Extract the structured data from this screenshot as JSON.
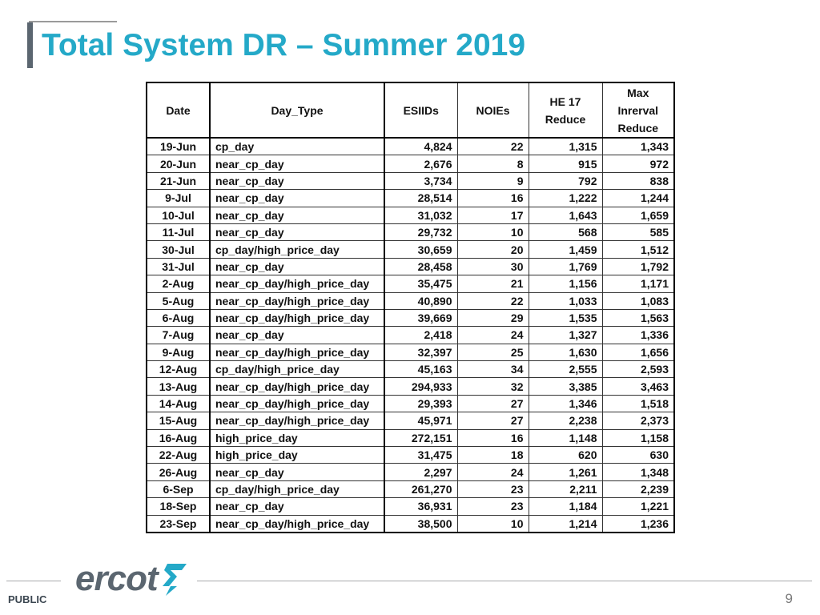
{
  "slide": {
    "title": "Total System DR – Summer 2019",
    "footer_label": "PUBLIC",
    "page_number": "9",
    "logo_text": "ercot",
    "accent_color": "#24a9c8",
    "logo_color": "#5b6670",
    "logo_mark_color": "#24a9c8"
  },
  "table": {
    "headers": {
      "date": "Date",
      "day_type": "Day_Type",
      "esiids": "ESIIDs",
      "noies": "NOIEs",
      "he17": [
        "HE 17",
        "Reduce"
      ],
      "max": [
        "Max",
        "Inrerval",
        "Reduce"
      ]
    },
    "rows": [
      [
        "19-Jun",
        "cp_day",
        "4,824",
        "22",
        "1,315",
        "1,343"
      ],
      [
        "20-Jun",
        "near_cp_day",
        "2,676",
        "8",
        "915",
        "972"
      ],
      [
        "21-Jun",
        "near_cp_day",
        "3,734",
        "9",
        "792",
        "838"
      ],
      [
        "9-Jul",
        "near_cp_day",
        "28,514",
        "16",
        "1,222",
        "1,244"
      ],
      [
        "10-Jul",
        "near_cp_day",
        "31,032",
        "17",
        "1,643",
        "1,659"
      ],
      [
        "11-Jul",
        "near_cp_day",
        "29,732",
        "10",
        "568",
        "585"
      ],
      [
        "30-Jul",
        "cp_day/high_price_day",
        "30,659",
        "20",
        "1,459",
        "1,512"
      ],
      [
        "31-Jul",
        "near_cp_day",
        "28,458",
        "30",
        "1,769",
        "1,792"
      ],
      [
        "2-Aug",
        "near_cp_day/high_price_day",
        "35,475",
        "21",
        "1,156",
        "1,171"
      ],
      [
        "5-Aug",
        "near_cp_day/high_price_day",
        "40,890",
        "22",
        "1,033",
        "1,083"
      ],
      [
        "6-Aug",
        "near_cp_day/high_price_day",
        "39,669",
        "29",
        "1,535",
        "1,563"
      ],
      [
        "7-Aug",
        "near_cp_day",
        "2,418",
        "24",
        "1,327",
        "1,336"
      ],
      [
        "9-Aug",
        "near_cp_day/high_price_day",
        "32,397",
        "25",
        "1,630",
        "1,656"
      ],
      [
        "12-Aug",
        "cp_day/high_price_day",
        "45,163",
        "34",
        "2,555",
        "2,593"
      ],
      [
        "13-Aug",
        "near_cp_day/high_price_day",
        "294,933",
        "32",
        "3,385",
        "3,463"
      ],
      [
        "14-Aug",
        "near_cp_day/high_price_day",
        "29,393",
        "27",
        "1,346",
        "1,518"
      ],
      [
        "15-Aug",
        "near_cp_day/high_price_day",
        "45,971",
        "27",
        "2,238",
        "2,373"
      ],
      [
        "16-Aug",
        "high_price_day",
        "272,151",
        "16",
        "1,148",
        "1,158"
      ],
      [
        "22-Aug",
        "high_price_day",
        "31,475",
        "18",
        "620",
        "630"
      ],
      [
        "26-Aug",
        "near_cp_day",
        "2,297",
        "24",
        "1,261",
        "1,348"
      ],
      [
        "6-Sep",
        "cp_day/high_price_day",
        "261,270",
        "23",
        "2,211",
        "2,239"
      ],
      [
        "18-Sep",
        "near_cp_day",
        "36,931",
        "23",
        "1,184",
        "1,221"
      ],
      [
        "23-Sep",
        "near_cp_day/high_price_day",
        "38,500",
        "10",
        "1,214",
        "1,236"
      ]
    ]
  }
}
